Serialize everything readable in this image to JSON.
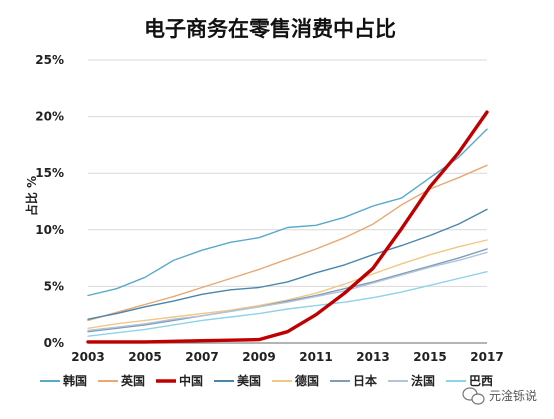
{
  "chart_data": {
    "type": "line",
    "title": "电子商务在零售消费中占比",
    "ylabel": "占比 %",
    "xlabel": "",
    "x": [
      2003,
      2004,
      2005,
      2006,
      2007,
      2008,
      2009,
      2010,
      2011,
      2012,
      2013,
      2014,
      2015,
      2016,
      2017
    ],
    "x_tick_labels": [
      "2003",
      "2005",
      "2007",
      "2009",
      "2011",
      "2013",
      "2015",
      "2017"
    ],
    "y_tick_labels": [
      "0%",
      "5%",
      "10%",
      "15%",
      "20%",
      "25%"
    ],
    "ylim": [
      0,
      25
    ],
    "xlim": [
      2003,
      2017
    ],
    "grid": "horizontal",
    "legend_position": "bottom",
    "series": [
      {
        "name": "韩国",
        "color": "#5AA9C9",
        "width": 1.4,
        "values": [
          4.2,
          4.8,
          5.8,
          7.3,
          8.2,
          8.9,
          9.3,
          10.2,
          10.4,
          11.1,
          12.1,
          12.8,
          14.6,
          16.4,
          18.9
        ]
      },
      {
        "name": "英国",
        "color": "#E8A872",
        "width": 1.4,
        "values": [
          2.0,
          2.7,
          3.4,
          4.1,
          4.9,
          5.7,
          6.5,
          7.4,
          8.3,
          9.3,
          10.5,
          12.2,
          13.6,
          14.6,
          15.7
        ]
      },
      {
        "name": "中国",
        "color": "#C00000",
        "width": 3.4,
        "values": [
          0.1,
          0.1,
          0.1,
          0.15,
          0.2,
          0.25,
          0.3,
          1.0,
          2.5,
          4.4,
          6.6,
          10.1,
          13.8,
          16.8,
          20.4
        ]
      },
      {
        "name": "美国",
        "color": "#4A86AB",
        "width": 1.4,
        "values": [
          2.1,
          2.6,
          3.2,
          3.7,
          4.3,
          4.7,
          4.9,
          5.4,
          6.2,
          6.9,
          7.8,
          8.6,
          9.5,
          10.5,
          11.8
        ]
      },
      {
        "name": "德国",
        "color": "#F2C784",
        "width": 1.4,
        "values": [
          1.3,
          1.7,
          2.0,
          2.3,
          2.6,
          2.9,
          3.3,
          3.8,
          4.4,
          5.2,
          6.1,
          7.0,
          7.8,
          8.5,
          9.1
        ]
      },
      {
        "name": "日本",
        "color": "#7F9BB8",
        "width": 1.4,
        "values": [
          1.0,
          1.3,
          1.6,
          2.0,
          2.4,
          2.8,
          3.2,
          3.7,
          4.2,
          4.8,
          5.4,
          6.1,
          6.8,
          7.5,
          8.3
        ]
      },
      {
        "name": "法国",
        "color": "#B0C4DA",
        "width": 1.4,
        "values": [
          1.1,
          1.4,
          1.7,
          2.1,
          2.4,
          2.8,
          3.2,
          3.6,
          4.1,
          4.6,
          5.3,
          6.0,
          6.7,
          7.3,
          8.0
        ]
      },
      {
        "name": "巴西",
        "color": "#8FD3E8",
        "width": 1.4,
        "values": [
          0.6,
          0.9,
          1.2,
          1.6,
          2.0,
          2.3,
          2.6,
          3.0,
          3.3,
          3.6,
          4.0,
          4.5,
          5.1,
          5.7,
          6.3
        ]
      }
    ]
  },
  "watermark": {
    "text": "元淦铄说",
    "icon": "wechat-icon"
  }
}
